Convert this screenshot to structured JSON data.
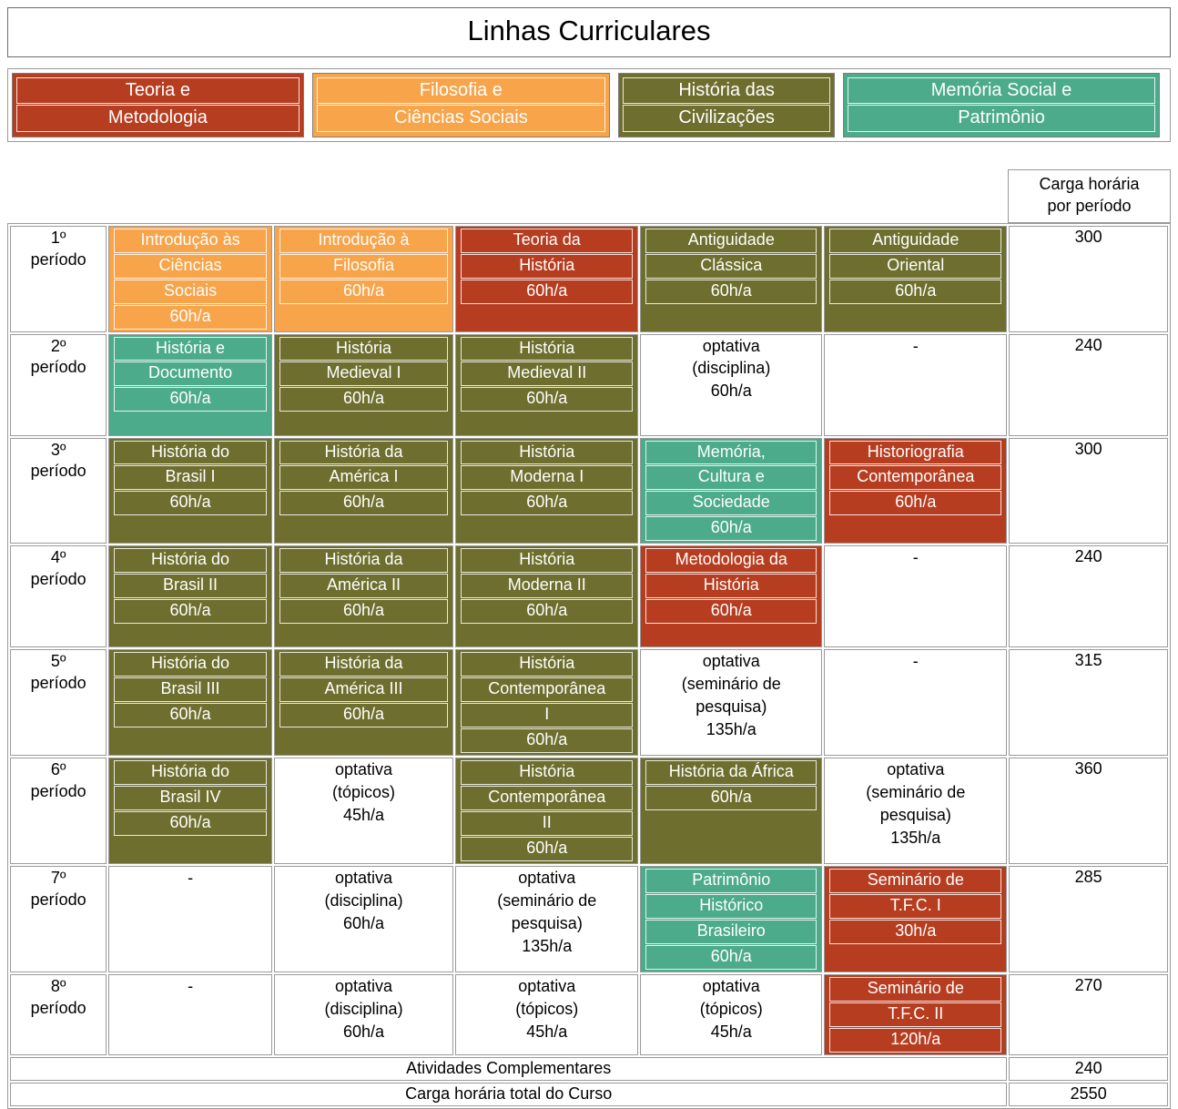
{
  "title": "Linhas Curriculares",
  "palette": {
    "red": "#b73d20",
    "orange": "#f7a44a",
    "olive": "#6e6f2e",
    "teal": "#4cab8a"
  },
  "legend": [
    {
      "cat": "red",
      "lines": [
        "Teoria e",
        "Metodologia"
      ]
    },
    {
      "cat": "orange",
      "lines": [
        "Filosofia e",
        "Ciências Sociais"
      ]
    },
    {
      "cat": "olive",
      "lines": [
        "História das",
        "Civilizações"
      ]
    },
    {
      "cat": "teal",
      "lines": [
        "Memória Social e",
        "Patrimônio"
      ]
    }
  ],
  "header": {
    "carga_horaria": [
      "Carga horária",
      "por período"
    ]
  },
  "grid": {
    "rows": [
      {
        "period": [
          "1º",
          "período"
        ],
        "total": "300",
        "cells": [
          {
            "cat": "orange",
            "lines": [
              "Introdução às",
              "Ciências",
              "Sociais",
              "60h/a"
            ]
          },
          {
            "cat": "orange",
            "lines": [
              "Introdução à",
              "Filosofia",
              "60h/a"
            ]
          },
          {
            "cat": "red",
            "lines": [
              "Teoria da",
              "História",
              "60h/a"
            ]
          },
          {
            "cat": "olive",
            "lines": [
              "Antiguidade",
              "Clássica",
              "60h/a"
            ]
          },
          {
            "cat": "olive",
            "lines": [
              "Antiguidade",
              "Oriental",
              "60h/a"
            ]
          }
        ]
      },
      {
        "period": [
          "2º",
          "período"
        ],
        "total": "240",
        "cells": [
          {
            "cat": "teal",
            "lines": [
              "História e",
              "Documento",
              "60h/a"
            ]
          },
          {
            "cat": "olive",
            "lines": [
              "História",
              "Medieval I",
              "60h/a"
            ]
          },
          {
            "cat": "olive",
            "lines": [
              "História",
              "Medieval II",
              "60h/a"
            ]
          },
          {
            "cat": "plain",
            "lines": [
              "optativa",
              "(disciplina)",
              "60h/a"
            ]
          },
          {
            "cat": "plain",
            "lines": [
              "-"
            ]
          }
        ]
      },
      {
        "period": [
          "3º",
          "período"
        ],
        "total": "300",
        "cells": [
          {
            "cat": "olive",
            "lines": [
              "História do",
              "Brasil I",
              "60h/a"
            ]
          },
          {
            "cat": "olive",
            "lines": [
              "História da",
              "América I",
              "60h/a"
            ]
          },
          {
            "cat": "olive",
            "lines": [
              "História",
              "Moderna I",
              "60h/a"
            ]
          },
          {
            "cat": "teal",
            "lines": [
              "Memória,",
              "Cultura e",
              "Sociedade",
              "60h/a"
            ]
          },
          {
            "cat": "red",
            "lines": [
              "Historiografia",
              "Contemporânea",
              "60h/a"
            ]
          }
        ]
      },
      {
        "period": [
          "4º",
          "período"
        ],
        "total": "240",
        "cells": [
          {
            "cat": "olive",
            "lines": [
              "História do",
              "Brasil II",
              "60h/a"
            ]
          },
          {
            "cat": "olive",
            "lines": [
              "História da",
              "América II",
              "60h/a"
            ]
          },
          {
            "cat": "olive",
            "lines": [
              "História",
              "Moderna II",
              "60h/a"
            ]
          },
          {
            "cat": "red",
            "lines": [
              "Metodologia da",
              "História",
              "60h/a"
            ]
          },
          {
            "cat": "plain",
            "lines": [
              "-"
            ]
          }
        ]
      },
      {
        "period": [
          "5º",
          "período"
        ],
        "total": "315",
        "cells": [
          {
            "cat": "olive",
            "lines": [
              "História do",
              "Brasil III",
              "60h/a"
            ]
          },
          {
            "cat": "olive",
            "lines": [
              "História da",
              "América III",
              "60h/a"
            ]
          },
          {
            "cat": "olive",
            "lines": [
              "História",
              "Contemporânea",
              "I",
              "60h/a"
            ]
          },
          {
            "cat": "plain",
            "lines": [
              "optativa",
              "(seminário de",
              "pesquisa)",
              "135h/a"
            ]
          },
          {
            "cat": "plain",
            "lines": [
              "-"
            ]
          }
        ]
      },
      {
        "period": [
          "6º",
          "período"
        ],
        "total": "360",
        "cells": [
          {
            "cat": "olive",
            "lines": [
              "História do",
              "Brasil IV",
              "60h/a"
            ]
          },
          {
            "cat": "plain",
            "lines": [
              "optativa",
              "(tópicos)",
              "45h/a"
            ]
          },
          {
            "cat": "olive",
            "lines": [
              "História",
              "Contemporânea",
              "II",
              "60h/a"
            ]
          },
          {
            "cat": "olive",
            "lines": [
              "História da África",
              "60h/a"
            ]
          },
          {
            "cat": "plain",
            "lines": [
              "optativa",
              "(seminário de",
              "pesquisa)",
              "135h/a"
            ]
          }
        ]
      },
      {
        "period": [
          "7º",
          "período"
        ],
        "total": "285",
        "cells": [
          {
            "cat": "plain",
            "lines": [
              "-"
            ]
          },
          {
            "cat": "plain",
            "lines": [
              "optativa",
              "(disciplina)",
              "60h/a"
            ]
          },
          {
            "cat": "plain",
            "lines": [
              "optativa",
              "(seminário de",
              "pesquisa)",
              "135h/a"
            ]
          },
          {
            "cat": "teal",
            "lines": [
              "Patrimônio",
              "Histórico",
              "Brasileiro",
              "60h/a"
            ]
          },
          {
            "cat": "red",
            "lines": [
              "Seminário de",
              "T.F.C. I",
              "30h/a"
            ]
          }
        ]
      },
      {
        "period": [
          "8º",
          "período"
        ],
        "total": "270",
        "cells": [
          {
            "cat": "plain",
            "lines": [
              "-"
            ]
          },
          {
            "cat": "plain",
            "lines": [
              "optativa",
              "(disciplina)",
              "60h/a"
            ]
          },
          {
            "cat": "plain",
            "lines": [
              "optativa",
              "(tópicos)",
              "45h/a"
            ]
          },
          {
            "cat": "plain",
            "lines": [
              "optativa",
              "(tópicos)",
              "45h/a"
            ]
          },
          {
            "cat": "red",
            "lines": [
              "Seminário de",
              "T.F.C. II",
              "120h/a"
            ]
          }
        ]
      }
    ]
  },
  "footer": [
    {
      "label": "Atividades Complementares",
      "value": "240"
    },
    {
      "label": "Carga horária total do Curso",
      "value": "2550"
    }
  ]
}
